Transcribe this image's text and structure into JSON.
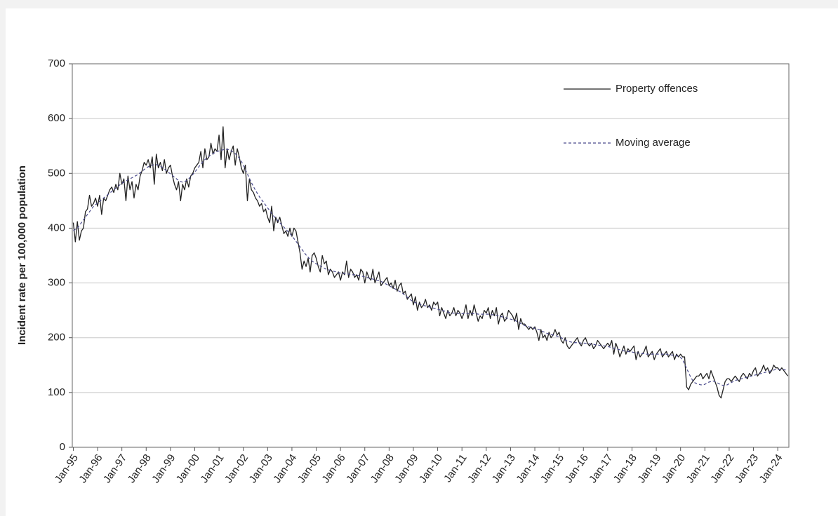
{
  "chart_data": {
    "type": "line",
    "y_label": "Incident rate per 100,000 population",
    "ylim": [
      0,
      700
    ],
    "yticks": [
      0,
      100,
      200,
      300,
      400,
      500,
      600,
      700
    ],
    "grid": true,
    "legend": "upper right",
    "categories": [
      "Jan-95",
      null,
      null,
      null,
      null,
      null,
      null,
      null,
      null,
      null,
      null,
      null,
      "Jan-96",
      null,
      null,
      null,
      null,
      null,
      null,
      null,
      null,
      null,
      null,
      null,
      "Jan-97",
      null,
      null,
      null,
      null,
      null,
      null,
      null,
      null,
      null,
      null,
      null,
      "Jan-98",
      null,
      null,
      null,
      null,
      null,
      null,
      null,
      null,
      null,
      null,
      null,
      "Jan-99",
      null,
      null,
      null,
      null,
      null,
      null,
      null,
      null,
      null,
      null,
      null,
      "Jan-00",
      null,
      null,
      null,
      null,
      null,
      null,
      null,
      null,
      null,
      null,
      null,
      "Jan-01",
      null,
      null,
      null,
      null,
      null,
      null,
      null,
      null,
      null,
      null,
      null,
      "Jan-02",
      null,
      null,
      null,
      null,
      null,
      null,
      null,
      null,
      null,
      null,
      null,
      "Jan-03",
      null,
      null,
      null,
      null,
      null,
      null,
      null,
      null,
      null,
      null,
      null,
      "Jan-04",
      null,
      null,
      null,
      null,
      null,
      null,
      null,
      null,
      null,
      null,
      null,
      "Jan-05",
      null,
      null,
      null,
      null,
      null,
      null,
      null,
      null,
      null,
      null,
      null,
      "Jan-06",
      null,
      null,
      null,
      null,
      null,
      null,
      null,
      null,
      null,
      null,
      null,
      "Jan-07",
      null,
      null,
      null,
      null,
      null,
      null,
      null,
      null,
      null,
      null,
      null,
      "Jan-08",
      null,
      null,
      null,
      null,
      null,
      null,
      null,
      null,
      null,
      null,
      null,
      "Jan-09",
      null,
      null,
      null,
      null,
      null,
      null,
      null,
      null,
      null,
      null,
      null,
      "Jan-10",
      null,
      null,
      null,
      null,
      null,
      null,
      null,
      null,
      null,
      null,
      null,
      "Jan-11",
      null,
      null,
      null,
      null,
      null,
      null,
      null,
      null,
      null,
      null,
      null,
      "Jan-12",
      null,
      null,
      null,
      null,
      null,
      null,
      null,
      null,
      null,
      null,
      null,
      "Jan-13",
      null,
      null,
      null,
      null,
      null,
      null,
      null,
      null,
      null,
      null,
      null,
      "Jan-14",
      null,
      null,
      null,
      null,
      null,
      null,
      null,
      null,
      null,
      null,
      null,
      "Jan-15",
      null,
      null,
      null,
      null,
      null,
      null,
      null,
      null,
      null,
      null,
      null,
      "Jan-16",
      null,
      null,
      null,
      null,
      null,
      null,
      null,
      null,
      null,
      null,
      null,
      "Jan-17",
      null,
      null,
      null,
      null,
      null,
      null,
      null,
      null,
      null,
      null,
      null,
      "Jan-18",
      null,
      null,
      null,
      null,
      null,
      null,
      null,
      null,
      null,
      null,
      null,
      "Jan-19",
      null,
      null,
      null,
      null,
      null,
      null,
      null,
      null,
      null,
      null,
      null,
      "Jan-20",
      null,
      null,
      null,
      null,
      null,
      null,
      null,
      null,
      null,
      null,
      null,
      "Jan-21",
      null,
      null,
      null,
      null,
      null,
      null,
      null,
      null,
      null,
      null,
      null,
      "Jan-22",
      null,
      null,
      null,
      null,
      null,
      null,
      null,
      null,
      null,
      null,
      null,
      "Jan-23",
      null,
      null,
      null,
      null,
      null,
      null,
      null,
      null,
      null,
      null,
      null,
      "Jan-24",
      null,
      null,
      null,
      null,
      null
    ],
    "series": [
      {
        "name": "Property offences",
        "color": "#222222",
        "style": "solid",
        "values": [
          410,
          375,
          412,
          378,
          395,
          400,
          430,
          435,
          460,
          440,
          445,
          455,
          440,
          460,
          425,
          455,
          450,
          460,
          470,
          475,
          465,
          480,
          470,
          500,
          480,
          490,
          450,
          495,
          470,
          485,
          455,
          480,
          470,
          495,
          505,
          520,
          515,
          525,
          510,
          530,
          480,
          535,
          510,
          520,
          505,
          525,
          500,
          510,
          515,
          495,
          480,
          470,
          485,
          450,
          480,
          470,
          490,
          475,
          495,
          500,
          510,
          515,
          520,
          540,
          510,
          545,
          525,
          530,
          555,
          535,
          545,
          540,
          570,
          525,
          585,
          510,
          545,
          525,
          540,
          550,
          515,
          545,
          530,
          510,
          500,
          515,
          450,
          490,
          470,
          465,
          455,
          450,
          440,
          445,
          430,
          435,
          420,
          410,
          440,
          395,
          420,
          410,
          420,
          405,
          390,
          395,
          385,
          400,
          385,
          400,
          395,
          375,
          355,
          325,
          340,
          330,
          345,
          320,
          350,
          355,
          345,
          330,
          320,
          350,
          335,
          340,
          315,
          325,
          320,
          310,
          315,
          320,
          305,
          320,
          315,
          340,
          310,
          325,
          320,
          310,
          315,
          305,
          325,
          320,
          300,
          320,
          310,
          305,
          325,
          300,
          310,
          320,
          295,
          300,
          305,
          310,
          295,
          300,
          290,
          305,
          285,
          295,
          300,
          280,
          285,
          270,
          275,
          280,
          260,
          275,
          250,
          265,
          255,
          260,
          270,
          255,
          260,
          250,
          265,
          260,
          265,
          240,
          255,
          245,
          235,
          250,
          240,
          245,
          255,
          240,
          250,
          245,
          235,
          245,
          260,
          235,
          250,
          240,
          260,
          245,
          230,
          240,
          235,
          250,
          245,
          255,
          235,
          250,
          240,
          255,
          225,
          240,
          245,
          230,
          235,
          250,
          245,
          240,
          230,
          245,
          215,
          235,
          225,
          225,
          220,
          215,
          220,
          215,
          220,
          210,
          195,
          215,
          200,
          205,
          195,
          210,
          200,
          205,
          215,
          205,
          210,
          195,
          190,
          200,
          185,
          180,
          185,
          190,
          195,
          200,
          190,
          185,
          195,
          200,
          190,
          185,
          190,
          180,
          185,
          195,
          190,
          185,
          180,
          185,
          190,
          185,
          195,
          170,
          190,
          180,
          165,
          175,
          185,
          170,
          180,
          175,
          180,
          185,
          160,
          175,
          165,
          170,
          175,
          185,
          165,
          170,
          175,
          160,
          170,
          175,
          180,
          165,
          170,
          175,
          165,
          170,
          175,
          160,
          170,
          165,
          170,
          165,
          165,
          110,
          105,
          115,
          120,
          125,
          130,
          130,
          135,
          125,
          130,
          135,
          125,
          140,
          130,
          120,
          110,
          95,
          90,
          105,
          120,
          125,
          125,
          120,
          125,
          130,
          125,
          120,
          130,
          135,
          130,
          125,
          135,
          130,
          140,
          145,
          130,
          135,
          140,
          150,
          140,
          145,
          135,
          140,
          150,
          145,
          145,
          140,
          145,
          140,
          135,
          130
        ]
      },
      {
        "name": "Moving average",
        "color": "#4a4a8c",
        "style": "dashed",
        "values": [
          395,
          398,
          400,
          405,
          410,
          415,
          420,
          425,
          430,
          435,
          440,
          443,
          446,
          449,
          452,
          455,
          458,
          461,
          464,
          467,
          470,
          473,
          476,
          479,
          482,
          484,
          486,
          488,
          490,
          492,
          494,
          496,
          498,
          501,
          504,
          507,
          510,
          512,
          514,
          515,
          516,
          516,
          515,
          513,
          511,
          508,
          505,
          502,
          499,
          496,
          493,
          490,
          487,
          485,
          484,
          485,
          487,
          490,
          494,
          498,
          502,
          507,
          512,
          517,
          521,
          525,
          528,
          531,
          534,
          536,
          538,
          540,
          541,
          542,
          543,
          544,
          544,
          543,
          541,
          539,
          536,
          532,
          528,
          522,
          515,
          507,
          499,
          491,
          483,
          476,
          469,
          463,
          457,
          452,
          447,
          442,
          437,
          432,
          427,
          422,
          418,
          414,
          410,
          406,
          402,
          398,
          394,
          390,
          386,
          381,
          376,
          371,
          366,
          361,
          356,
          351,
          347,
          343,
          340,
          337,
          335,
          333,
          331,
          329,
          327,
          325,
          324,
          323,
          322,
          321,
          320,
          319,
          318,
          318,
          317,
          317,
          316,
          316,
          315,
          315,
          314,
          314,
          313,
          312,
          311,
          310,
          309,
          308,
          307,
          306,
          305,
          304,
          303,
          301,
          299,
          297,
          295,
          293,
          291,
          289,
          287,
          285,
          283,
          280,
          277,
          274,
          271,
          268,
          266,
          264,
          262,
          261,
          260,
          259,
          258,
          257,
          256,
          255,
          254,
          253,
          252,
          251,
          250,
          249,
          248,
          247,
          246,
          245,
          245,
          244,
          244,
          244,
          244,
          244,
          244,
          244,
          244,
          244,
          244,
          244,
          243,
          243,
          243,
          243,
          243,
          243,
          242,
          242,
          241,
          241,
          240,
          239,
          238,
          237,
          236,
          235,
          234,
          233,
          232,
          230,
          228,
          226,
          224,
          222,
          221,
          220,
          219,
          218,
          217,
          216,
          215,
          213,
          211,
          210,
          208,
          207,
          206,
          205,
          204,
          203,
          202,
          200,
          198,
          196,
          194,
          193,
          192,
          191,
          191,
          191,
          191,
          190,
          190,
          190,
          189,
          189,
          188,
          188,
          187,
          187,
          186,
          186,
          185,
          185,
          184,
          183,
          182,
          181,
          180,
          179,
          178,
          177,
          176,
          175,
          175,
          174,
          174,
          173,
          173,
          172,
          172,
          171,
          171,
          170,
          170,
          170,
          170,
          170,
          170,
          170,
          170,
          170,
          170,
          170,
          169,
          169,
          168,
          168,
          167,
          166,
          164,
          160,
          152,
          144,
          136,
          128,
          122,
          118,
          116,
          115,
          114,
          114,
          115,
          117,
          119,
          120,
          121,
          120,
          118,
          116,
          114,
          113,
          113,
          114,
          116,
          118,
          120,
          122,
          123,
          124,
          125,
          126,
          127,
          128,
          129,
          130,
          131,
          132,
          133,
          134,
          135,
          136,
          137,
          138,
          139,
          140,
          141,
          142,
          142,
          142,
          142,
          142,
          141,
          141
        ]
      }
    ]
  }
}
